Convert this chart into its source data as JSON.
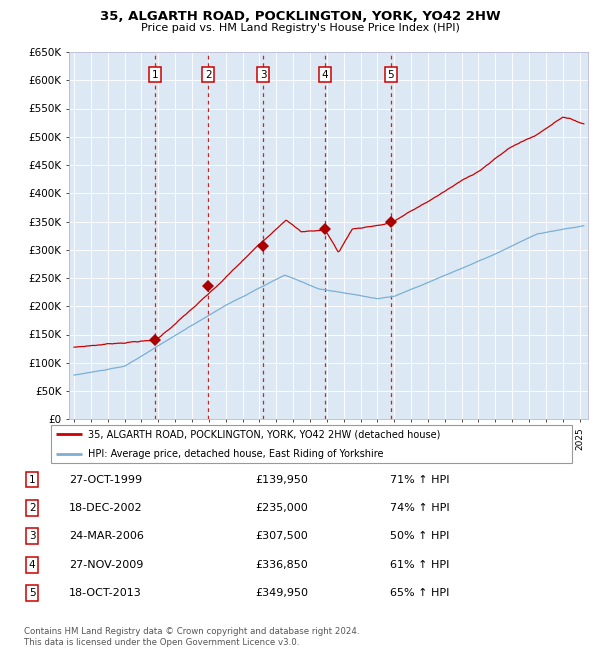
{
  "title": "35, ALGARTH ROAD, POCKLINGTON, YORK, YO42 2HW",
  "subtitle": "Price paid vs. HM Land Registry's House Price Index (HPI)",
  "ylabel_ticks": [
    "£0",
    "£50K",
    "£100K",
    "£150K",
    "£200K",
    "£250K",
    "£300K",
    "£350K",
    "£400K",
    "£450K",
    "£500K",
    "£550K",
    "£600K",
    "£650K"
  ],
  "ytick_values": [
    0,
    50000,
    100000,
    150000,
    200000,
    250000,
    300000,
    350000,
    400000,
    450000,
    500000,
    550000,
    600000,
    650000
  ],
  "ylim": [
    0,
    650000
  ],
  "xlim_start": 1994.7,
  "xlim_end": 2025.5,
  "bg_color": "#dce9f5",
  "grid_color": "#ffffff",
  "red_line_color": "#cc0000",
  "blue_line_color": "#7bafd4",
  "sale_marker_color": "#aa0000",
  "dashed_line_color": "#cc2222",
  "sale_events": [
    {
      "label": "1",
      "year": 1999.82,
      "price": 139950
    },
    {
      "label": "2",
      "year": 2002.96,
      "price": 235000
    },
    {
      "label": "3",
      "year": 2006.23,
      "price": 307500
    },
    {
      "label": "4",
      "year": 2009.9,
      "price": 336850
    },
    {
      "label": "5",
      "year": 2013.79,
      "price": 349950
    }
  ],
  "legend_red_label": "35, ALGARTH ROAD, POCKLINGTON, YORK, YO42 2HW (detached house)",
  "legend_blue_label": "HPI: Average price, detached house, East Riding of Yorkshire",
  "footer_text": "Contains HM Land Registry data © Crown copyright and database right 2024.\nThis data is licensed under the Open Government Licence v3.0.",
  "table_rows": [
    {
      "num": "1",
      "date": "27-OCT-1999",
      "price": "£139,950",
      "hpi": "71% ↑ HPI"
    },
    {
      "num": "2",
      "date": "18-DEC-2002",
      "price": "£235,000",
      "hpi": "74% ↑ HPI"
    },
    {
      "num": "3",
      "date": "24-MAR-2006",
      "price": "£307,500",
      "hpi": "50% ↑ HPI"
    },
    {
      "num": "4",
      "date": "27-NOV-2009",
      "price": "£336,850",
      "hpi": "61% ↑ HPI"
    },
    {
      "num": "5",
      "date": "18-OCT-2013",
      "price": "£349,950",
      "hpi": "65% ↑ HPI"
    }
  ]
}
